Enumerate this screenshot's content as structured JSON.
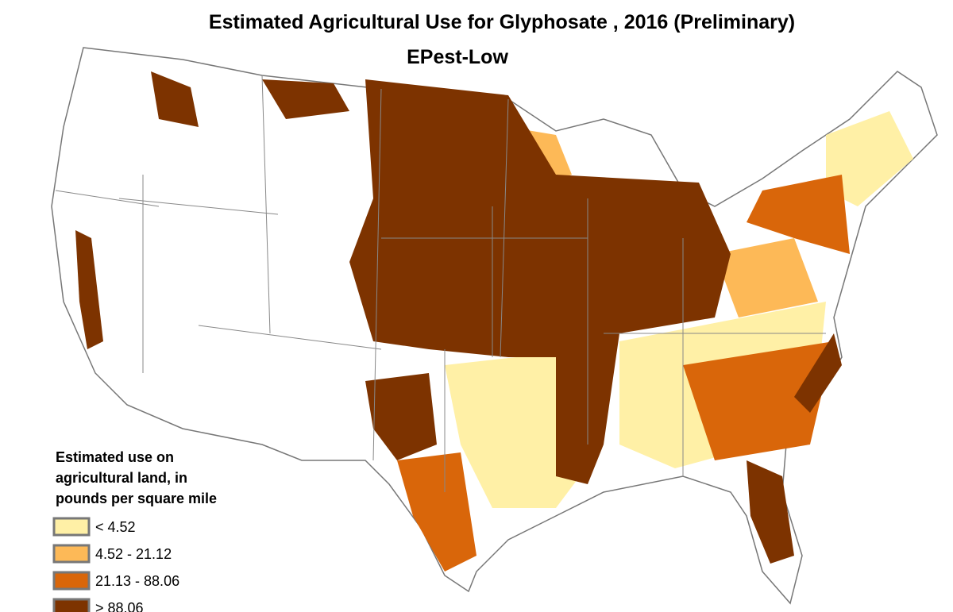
{
  "header": {
    "title": "Estimated Agricultural Use for Glyphosate , 2016 (Preliminary)",
    "subtitle": "EPest-Low"
  },
  "legend": {
    "title": [
      "Estimated use on",
      "agricultural land, in",
      "pounds per square mile"
    ],
    "items": [
      {
        "label": "< 4.52",
        "color": "#fff0a6"
      },
      {
        "label": "4.52 - 21.12",
        "color": "#fdb957"
      },
      {
        "label": "21.13 - 88.06",
        "color": "#d9660a"
      },
      {
        "label": "> 88.06",
        "color": "#7d3300"
      }
    ]
  }
}
